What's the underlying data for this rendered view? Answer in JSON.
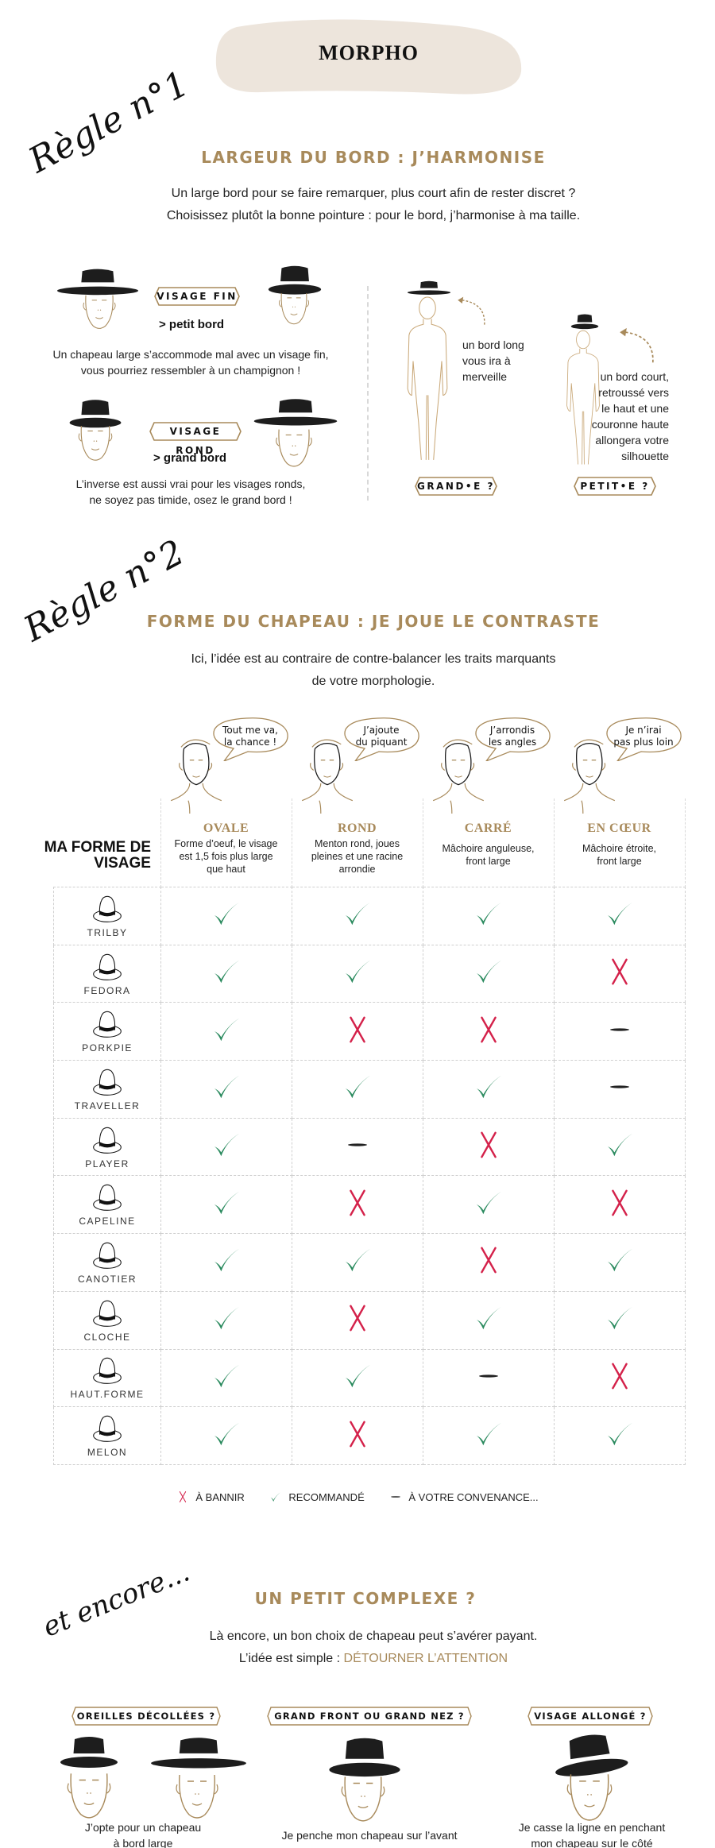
{
  "header": {
    "title": "MORPHO"
  },
  "colors": {
    "gold": "#a88a5b",
    "blob": "#ede5dc",
    "check": "#2a8a5e",
    "cross": "#d4214a",
    "dash": "#222222"
  },
  "rule1": {
    "script": "Règle n°1",
    "heading": "LARGEUR DU BORD : J’HARMONISE",
    "intro": [
      "Un large bord pour se faire remarquer, plus court afin de rester discret ?",
      "Choisissez plutôt la bonne pointure : pour le bord, j’harmonise à ma taille."
    ],
    "visage_fin": {
      "label": "VISAGE FIN",
      "advice": "> petit bord",
      "desc": [
        "Un chapeau large s’accommode mal avec un visage fin,",
        "vous pourriez ressembler à un champignon !"
      ]
    },
    "visage_rond": {
      "label": "VISAGE ROND",
      "advice": "> grand bord",
      "desc": [
        "L’inverse est aussi vrai pour les visages ronds,",
        "ne soyez pas timide, osez le grand bord !"
      ]
    },
    "grand": {
      "label": "GRAND•E ?",
      "text": [
        "un bord long",
        "vous ira à",
        "merveille"
      ]
    },
    "petit": {
      "label": "PETIT•E ?",
      "text": [
        "un bord court,",
        "retroussé vers",
        "le haut et une",
        "couronne haute",
        "allongera votre",
        "silhouette"
      ]
    }
  },
  "rule2": {
    "script": "Règle n°2",
    "heading": "FORME DU CHAPEAU : JE JOUE LE CONTRASTE",
    "intro": [
      "Ici, l’idée est au contraire de contre-balancer les traits marquants",
      "de votre morphologie."
    ],
    "row_header": [
      "MA FORME DE",
      "VISAGE"
    ],
    "faces": [
      {
        "name": "OVALE",
        "bubble": [
          "Tout me va,",
          "la chance !"
        ],
        "desc": [
          "Forme d’oeuf, le visage",
          "est 1,5 fois plus large",
          "que haut"
        ]
      },
      {
        "name": "ROND",
        "bubble": [
          "J’ajoute",
          "du piquant"
        ],
        "desc": [
          "Menton rond, joues",
          "pleines et une racine",
          "arrondie"
        ]
      },
      {
        "name": "CARRÉ",
        "bubble": [
          "J’arrondis",
          "les angles"
        ],
        "desc": [
          "Mâchoire anguleuse,",
          "front large"
        ]
      },
      {
        "name": "EN CŒUR",
        "bubble": [
          "Je n’irai",
          "pas plus loin"
        ],
        "desc": [
          "Mâchoire étroite,",
          "front large"
        ]
      }
    ],
    "hats": [
      {
        "name": "TRILBY",
        "values": [
          "check",
          "check",
          "check",
          "check"
        ]
      },
      {
        "name": "FEDORA",
        "values": [
          "check",
          "check",
          "check",
          "cross"
        ]
      },
      {
        "name": "PORKPIE",
        "values": [
          "check",
          "cross",
          "cross",
          "dash"
        ]
      },
      {
        "name": "TRAVELLER",
        "values": [
          "check",
          "check",
          "check",
          "dash"
        ]
      },
      {
        "name": "PLAYER",
        "values": [
          "check",
          "dash",
          "cross",
          "check"
        ]
      },
      {
        "name": "CAPELINE",
        "values": [
          "check",
          "cross",
          "check",
          "cross"
        ]
      },
      {
        "name": "CANOTIER",
        "values": [
          "check",
          "check",
          "cross",
          "check"
        ]
      },
      {
        "name": "CLOCHE",
        "values": [
          "check",
          "cross",
          "check",
          "check"
        ]
      },
      {
        "name": "HAUT.FORME",
        "values": [
          "check",
          "check",
          "dash",
          "cross"
        ]
      },
      {
        "name": "MELON",
        "values": [
          "check",
          "cross",
          "check",
          "check"
        ]
      }
    ],
    "legend": [
      {
        "icon": "cross",
        "label": "À BANNIR"
      },
      {
        "icon": "check",
        "label": "RECOMMANDÉ"
      },
      {
        "icon": "dash",
        "label": "À VOTRE CONVENANCE..."
      }
    ]
  },
  "rule3": {
    "script": "et encore...",
    "heading": "UN PETIT COMPLEXE ?",
    "intro_line1": "Là encore, un bon choix de chapeau peut s’avérer payant.",
    "intro_line2_prefix": "L’idée est simple : ",
    "intro_line2_highlight": "DÉTOURNER L’ATTENTION",
    "tips": [
      {
        "label": "OREILLES DÉCOLLÉES ?",
        "caption": [
          "J’opte pour un chapeau",
          "à bord large"
        ]
      },
      {
        "label": "GRAND FRONT OU GRAND NEZ ?",
        "caption": [
          "Je penche mon chapeau sur l’avant"
        ]
      },
      {
        "label": "VISAGE ALLONGÉ ?",
        "caption": [
          "Je casse la ligne en penchant",
          "mon chapeau sur le côté"
        ]
      }
    ]
  }
}
